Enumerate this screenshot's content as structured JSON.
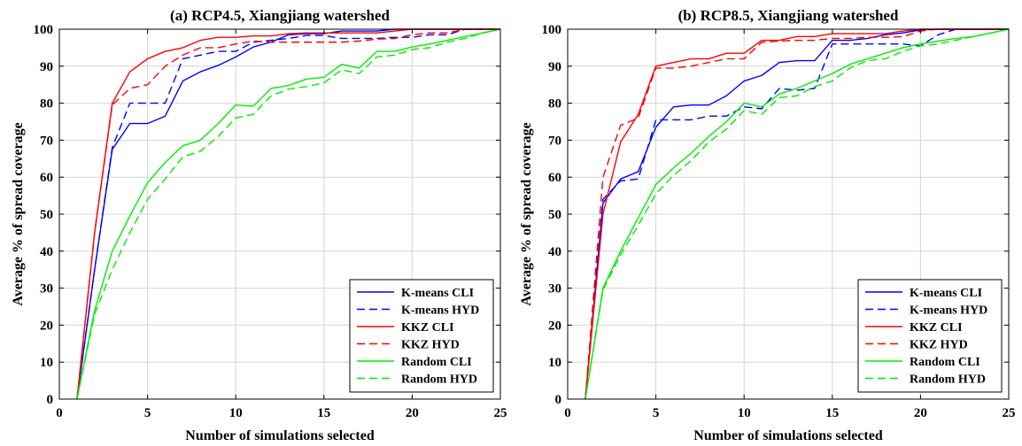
{
  "figure": {
    "panels": [
      {
        "title": "(a) RCP4.5, Xiangjiang watershed"
      },
      {
        "title": "(b) RCP8.5, Xiangjiang watershed"
      }
    ],
    "xlabel": "Number of simulations selected",
    "ylabel": "Average % of spread coverage"
  },
  "legend": {
    "placement": "bottom-right",
    "entries": [
      {
        "label": "K-means CLI",
        "color": "#0000ff",
        "dash": "solid"
      },
      {
        "label": "K-means HYD",
        "color": "#0000ff",
        "dash": "dashed"
      },
      {
        "label": "KKZ CLI",
        "color": "#ff0000",
        "dash": "solid"
      },
      {
        "label": "KKZ HYD",
        "color": "#ff0000",
        "dash": "dashed"
      },
      {
        "label": "Random CLI",
        "color": "#00ee00",
        "dash": "solid"
      },
      {
        "label": "Random HYD",
        "color": "#00ee00",
        "dash": "dashed"
      }
    ]
  },
  "chart_data": [
    {
      "type": "line",
      "title": "(a) RCP4.5, Xiangjiang watershed",
      "xlabel": "Number of simulations selected",
      "ylabel": "Average % of spread coverage",
      "xlim": [
        0,
        25
      ],
      "ylim": [
        0,
        100
      ],
      "xticks": [
        0,
        5,
        10,
        15,
        20,
        25
      ],
      "yticks": [
        0,
        10,
        20,
        30,
        40,
        50,
        60,
        70,
        80,
        90,
        100
      ],
      "grid": true,
      "legend": "bottom-right",
      "x": [
        1,
        2,
        3,
        4,
        5,
        6,
        7,
        8,
        9,
        10,
        11,
        12,
        13,
        14,
        15,
        16,
        17,
        18,
        19,
        20,
        21,
        22,
        23,
        24,
        25
      ],
      "series": [
        {
          "name": "K-means CLI",
          "color": "#0000ff",
          "dash": "solid",
          "values": [
            0,
            35,
            67.5,
            74.5,
            74.5,
            76.5,
            86,
            88.5,
            90.2,
            92.5,
            95.2,
            96.5,
            98.5,
            98.8,
            98.8,
            99.5,
            99.5,
            99.5,
            100,
            100,
            100,
            100,
            100,
            100,
            100
          ]
        },
        {
          "name": "K-means HYD",
          "color": "#0000ff",
          "dash": "dashed",
          "values": [
            0,
            35,
            68,
            80,
            80,
            80,
            92,
            93,
            94,
            94,
            96.5,
            97,
            97.5,
            98.3,
            98.3,
            97.5,
            97.5,
            97.5,
            97.8,
            97.8,
            98.5,
            98.5,
            100,
            100,
            100
          ]
        },
        {
          "name": "KKZ CLI",
          "color": "#ff0000",
          "dash": "solid",
          "values": [
            0,
            45,
            80,
            88.5,
            92,
            94,
            95,
            97,
            97.8,
            97.8,
            98.2,
            98.2,
            98.8,
            99,
            99,
            99,
            99,
            99,
            99.5,
            100,
            100,
            100,
            100,
            100,
            100
          ]
        },
        {
          "name": "KKZ HYD",
          "color": "#ff0000",
          "dash": "dashed",
          "values": [
            0,
            45,
            79.5,
            84,
            85,
            90,
            93,
            95,
            95,
            96,
            96.8,
            96.5,
            96.5,
            96.5,
            96.5,
            96.5,
            96.8,
            97.3,
            97.5,
            98.5,
            99,
            99,
            100,
            100,
            100
          ]
        },
        {
          "name": "Random CLI",
          "color": "#00ee00",
          "dash": "solid",
          "values": [
            0,
            24,
            40,
            49.5,
            58.5,
            64,
            68.5,
            70,
            74.5,
            79.5,
            79.2,
            84,
            84.8,
            86.5,
            87,
            90.5,
            89.5,
            94,
            94,
            95.2,
            96,
            97,
            98,
            99,
            100
          ]
        },
        {
          "name": "Random HYD",
          "color": "#00ee00",
          "dash": "dashed",
          "values": [
            0,
            23,
            35,
            45,
            54,
            59.5,
            65.5,
            67,
            71,
            76,
            77,
            82,
            83.8,
            84.5,
            85.5,
            89,
            88,
            92.5,
            93,
            94.5,
            95,
            96.5,
            97.5,
            99,
            100
          ]
        }
      ]
    },
    {
      "type": "line",
      "title": "(b) RCP8.5, Xiangjiang watershed",
      "xlabel": "Number of simulations selected",
      "ylabel": "Average % of spread coverage",
      "xlim": [
        0,
        25
      ],
      "ylim": [
        0,
        100
      ],
      "xticks": [
        0,
        5,
        10,
        15,
        20,
        25
      ],
      "yticks": [
        0,
        10,
        20,
        30,
        40,
        50,
        60,
        70,
        80,
        90,
        100
      ],
      "grid": true,
      "legend": "bottom-right",
      "x": [
        1,
        2,
        3,
        4,
        5,
        6,
        7,
        8,
        9,
        10,
        11,
        12,
        13,
        14,
        15,
        16,
        17,
        18,
        19,
        20,
        21,
        22,
        23,
        24,
        25
      ],
      "series": [
        {
          "name": "K-means CLI",
          "color": "#0000ff",
          "dash": "solid",
          "values": [
            0,
            53,
            59.5,
            61.5,
            73.5,
            79,
            79.5,
            79.5,
            82,
            86,
            87.5,
            91,
            91.5,
            91.5,
            97,
            97,
            97.5,
            98.5,
            99,
            99.8,
            100,
            100,
            100,
            100,
            100
          ]
        },
        {
          "name": "K-means HYD",
          "color": "#0000ff",
          "dash": "dashed",
          "values": [
            0,
            54,
            59,
            59.5,
            75.5,
            75.5,
            75.5,
            76.5,
            76.5,
            79,
            78.5,
            84,
            83.5,
            84,
            96,
            96,
            96,
            96,
            96,
            95.5,
            98.5,
            100,
            100,
            100,
            100
          ]
        },
        {
          "name": "KKZ CLI",
          "color": "#ff0000",
          "dash": "solid",
          "values": [
            0,
            50,
            69.5,
            77,
            90,
            91,
            92,
            92,
            93.5,
            93.5,
            97,
            97,
            98,
            98,
            98.8,
            98.8,
            98.8,
            98.8,
            99.5,
            100,
            100,
            100,
            100,
            100,
            100
          ]
        },
        {
          "name": "KKZ HYD",
          "color": "#ff0000",
          "dash": "dashed",
          "values": [
            0,
            60,
            74,
            76,
            89.5,
            89.5,
            90,
            91,
            92,
            92,
            96.5,
            96.8,
            97,
            97,
            97.5,
            97.5,
            97.8,
            97.8,
            98,
            99.5,
            100,
            100,
            100,
            100,
            100
          ]
        },
        {
          "name": "Random CLI",
          "color": "#00ee00",
          "dash": "solid",
          "values": [
            0,
            30,
            40,
            49,
            58,
            62.5,
            66.5,
            71,
            75,
            80,
            79,
            82.5,
            84,
            86,
            88,
            90.5,
            92,
            93.5,
            95,
            96,
            96.8,
            97.5,
            98,
            99,
            100
          ]
        },
        {
          "name": "Random HYD",
          "color": "#00ee00",
          "dash": "dashed",
          "values": [
            0,
            29.5,
            39,
            47,
            55.5,
            60.5,
            64.5,
            69.5,
            73,
            78,
            77,
            81.5,
            82,
            84.5,
            86,
            89.5,
            91.5,
            92,
            94,
            95.5,
            96,
            97,
            98,
            99,
            100
          ]
        }
      ]
    }
  ]
}
